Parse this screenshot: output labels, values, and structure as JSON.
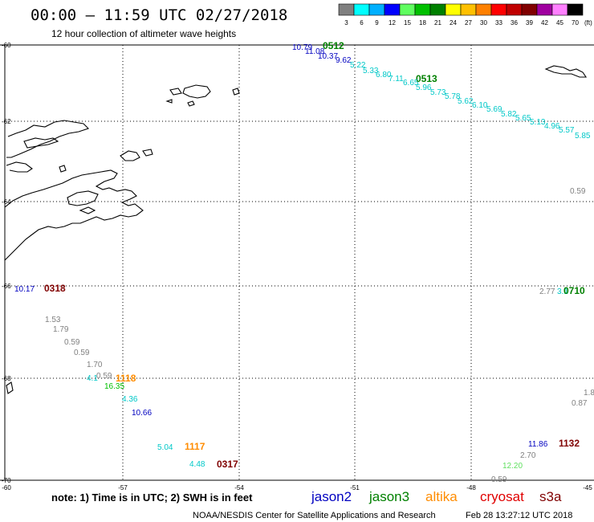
{
  "header": {
    "title": "00:00 – 11:59 UTC 02/27/2018",
    "subtitle": "12 hour collection of altimeter wave heights"
  },
  "colorbar": {
    "labels": [
      "3",
      "6",
      "9",
      "12",
      "15",
      "18",
      "21",
      "24",
      "27",
      "30",
      "33",
      "36",
      "39",
      "42",
      "45",
      "70"
    ],
    "unit": "(ft)",
    "colors": [
      "#808080",
      "#00ffff",
      "#00b0ff",
      "#0000ff",
      "#60ff60",
      "#00c000",
      "#008000",
      "#ffff00",
      "#ffc000",
      "#ff8000",
      "#ff0000",
      "#c00000",
      "#800000",
      "#a000a0",
      "#ff80ff",
      "#000000"
    ]
  },
  "axes": {
    "lat_labels": [
      "-60",
      "-62",
      "-64",
      "-66",
      "-68",
      "-70"
    ],
    "lon_labels": [
      "-60",
      "-57",
      "-54",
      "-51",
      "-48",
      "-45"
    ]
  },
  "labels": [
    {
      "text": "10.79",
      "color": "#0000c0"
    },
    {
      "text": "0512",
      "color": "#008000"
    },
    {
      "text": "11.08",
      "color": "#0000c0"
    },
    {
      "text": "10.37",
      "color": "#0000c0"
    },
    {
      "text": "9.62",
      "color": "#0000c0"
    },
    {
      "text": "5.22",
      "color": "#00c8c8"
    },
    {
      "text": "5.33",
      "color": "#00c8c8"
    },
    {
      "text": "6.80",
      "color": "#00c8c8"
    },
    {
      "text": "7.11",
      "color": "#00c8c8"
    },
    {
      "text": "0513",
      "color": "#008000"
    },
    {
      "text": "6.65",
      "color": "#00c8c8"
    },
    {
      "text": "5.96",
      "color": "#00c8c8"
    },
    {
      "text": "5.73",
      "color": "#00c8c8"
    },
    {
      "text": "5.78",
      "color": "#00c8c8"
    },
    {
      "text": "5.62",
      "color": "#00c8c8"
    },
    {
      "text": "6.10",
      "color": "#00c8c8"
    },
    {
      "text": "5.69",
      "color": "#00c8c8"
    },
    {
      "text": "5.82",
      "color": "#00c8c8"
    },
    {
      "text": "5.65",
      "color": "#00c8c8"
    },
    {
      "text": "5.13",
      "color": "#00c8c8"
    },
    {
      "text": "4.96",
      "color": "#00c8c8"
    },
    {
      "text": "5.57",
      "color": "#00c8c8"
    },
    {
      "text": "5.85",
      "color": "#00c8c8"
    },
    {
      "text": "0.59",
      "color": "#808080"
    },
    {
      "text": "10.17",
      "color": "#0000c0"
    },
    {
      "text": "0318",
      "color": "#800000"
    },
    {
      "text": "2.77",
      "color": "#808080"
    },
    {
      "text": "3.1",
      "color": "#00c8c8"
    },
    {
      "text": "0710",
      "color": "#008000"
    },
    {
      "text": "1.53",
      "color": "#808080"
    },
    {
      "text": "1.79",
      "color": "#808080"
    },
    {
      "text": "0.59",
      "color": "#808080"
    },
    {
      "text": "0.59",
      "color": "#808080"
    },
    {
      "text": "1.70",
      "color": "#808080"
    },
    {
      "text": "0.59",
      "color": "#808080"
    },
    {
      "text": "4.1",
      "color": "#00c8c8"
    },
    {
      "text": "1118",
      "color": "#ff8c00"
    },
    {
      "text": "16.35",
      "color": "#00c000"
    },
    {
      "text": "4.36",
      "color": "#00c8c8"
    },
    {
      "text": "10.66",
      "color": "#0000c0"
    },
    {
      "text": "1.8",
      "color": "#808080"
    },
    {
      "text": "0.87",
      "color": "#808080"
    },
    {
      "text": "5.04",
      "color": "#00c8c8"
    },
    {
      "text": "1117",
      "color": "#ff8c00"
    },
    {
      "text": "4.48",
      "color": "#00c8c8"
    },
    {
      "text": "0317",
      "color": "#800000"
    },
    {
      "text": "11.86",
      "color": "#0000c0"
    },
    {
      "text": "1132",
      "color": "#800000"
    },
    {
      "text": "2.70",
      "color": "#808080"
    },
    {
      "text": "12.20",
      "color": "#60e060"
    },
    {
      "text": "0.59",
      "color": "#808080"
    }
  ],
  "footer": {
    "note": "note:  1) Time is in UTC;  2) SWH is in feet",
    "missions": [
      {
        "name": "jason2",
        "color": "#0000c0"
      },
      {
        "name": "jason3",
        "color": "#008000"
      },
      {
        "name": "altika",
        "color": "#ff8c00"
      },
      {
        "name": "cryosat",
        "color": "#e00000"
      },
      {
        "name": "s3a",
        "color": "#800000"
      }
    ],
    "credit": "NOAA/NESDIS Center for Satellite Applications and Research",
    "timestamp": "Feb 28 13:27:12 UTC 2018"
  }
}
